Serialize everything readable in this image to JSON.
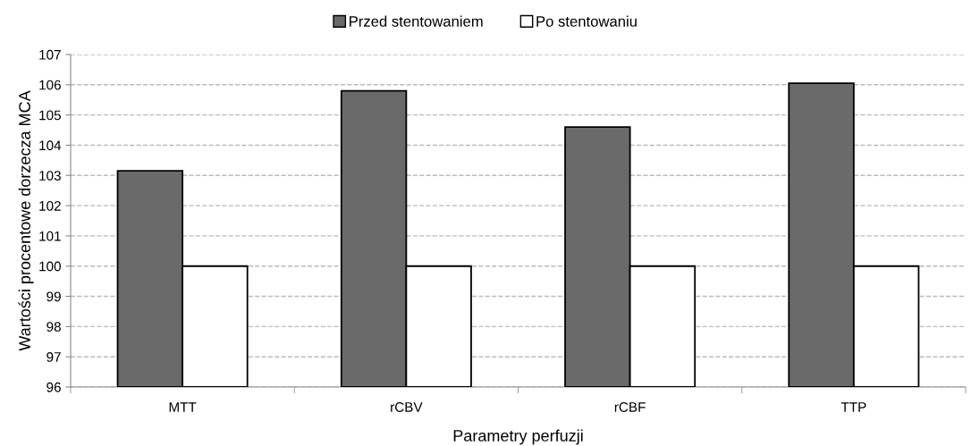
{
  "chart_data": {
    "type": "bar",
    "xlabel": "Parametry perfuzji",
    "ylabel": "Wartości procentowe dorzecza MCA",
    "categories": [
      "MTT",
      "rCBV",
      "rCBF",
      "TTP"
    ],
    "series": [
      {
        "name": "Przed stentowaniem",
        "color": "#6a6a6a",
        "values": [
          103.15,
          105.8,
          104.6,
          106.05
        ]
      },
      {
        "name": "Po stentowaniu",
        "color": "#ffffff",
        "values": [
          100,
          100,
          100,
          100
        ]
      }
    ],
    "ylim": [
      96,
      107
    ],
    "yticks": [
      96,
      97,
      98,
      99,
      100,
      101,
      102,
      103,
      104,
      105,
      106,
      107
    ],
    "grid": "y",
    "legend": "top"
  }
}
